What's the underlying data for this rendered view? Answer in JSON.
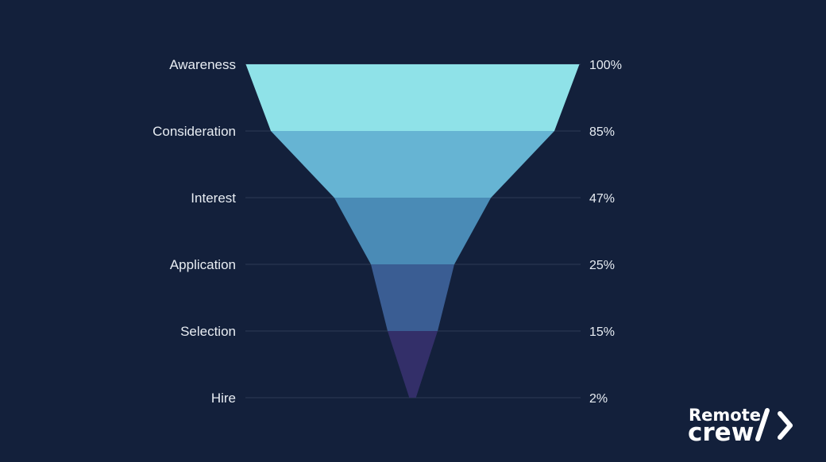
{
  "chart_data": {
    "type": "funnel",
    "stages": [
      "Awareness",
      "Consideration",
      "Interest",
      "Application",
      "Selection",
      "Hire"
    ],
    "values": [
      100,
      85,
      47,
      25,
      15,
      2
    ],
    "value_labels": [
      "100%",
      "85%",
      "47%",
      "25%",
      "15%",
      "2%"
    ],
    "unit": "%",
    "colors": [
      "#8fe2e8",
      "#66b4d3",
      "#4a8bb6",
      "#3a5d93",
      "#332f69"
    ],
    "background_color": "#13203b",
    "text_color": "#e8edf3",
    "gridline_color": "#2c3a56"
  },
  "brand": {
    "line1": "Remote",
    "line2": "crew",
    "logo_icon": "slash-chevron-icon"
  }
}
